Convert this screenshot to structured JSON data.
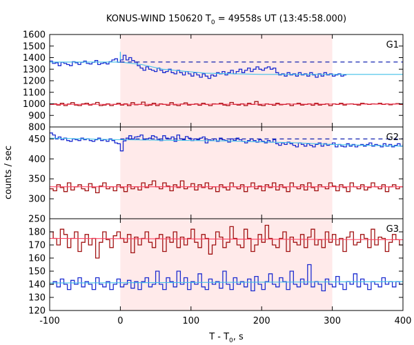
{
  "title": {
    "prefix": "KONUS-WIND 150620 T",
    "sub": "0",
    "suffix": " = 49558s UT (13:45:58.000)"
  },
  "xlabel": {
    "prefix": "T - T",
    "sub": "0",
    "suffix": ", s"
  },
  "ylabel": "counts / sec",
  "colors": {
    "shade": "#ffeaea",
    "blue": "#1a2bd0",
    "red": "#a01010",
    "cyan": "#40c0e8",
    "pink": "#ff4060",
    "blue_dash": "#1020b0"
  },
  "chart_data": {
    "type": "line",
    "x_range": [
      -100,
      400
    ],
    "x_ticks": [
      -100,
      0,
      100,
      200,
      300,
      400
    ],
    "highlight_interval": [
      0,
      300
    ],
    "panels": [
      {
        "label": "G1",
        "ylim": [
          800,
          1600
        ],
        "yticks": [
          800,
          900,
          1000,
          1100,
          1200,
          1300,
          1400,
          1500,
          1600
        ],
        "dashed_level": 1362,
        "series": [
          {
            "color": "blue",
            "step": 4,
            "x_start": -100,
            "values": [
              1370,
              1350,
              1355,
              1330,
              1360,
              1350,
              1340,
              1330,
              1365,
              1355,
              1340,
              1360,
              1370,
              1350,
              1345,
              1360,
              1375,
              1340,
              1350,
              1355,
              1345,
              1365,
              1380,
              1390,
              1360,
              1380,
              1420,
              1380,
              1400,
              1375,
              1360,
              1330,
              1310,
              1290,
              1320,
              1300,
              1290,
              1280,
              1310,
              1290,
              1270,
              1280,
              1300,
              1270,
              1260,
              1290,
              1270,
              1250,
              1280,
              1260,
              1240,
              1270,
              1250,
              1230,
              1260,
              1240,
              1220,
              1250,
              1240,
              1270,
              1260,
              1280,
              1250,
              1270,
              1290,
              1260,
              1280,
              1300,
              1270,
              1290,
              1310,
              1280,
              1300,
              1320,
              1300,
              1290,
              1310,
              1320,
              1300,
              1310,
              1270,
              1250,
              1260,
              1240,
              1270,
              1250,
              1260,
              1240,
              1270,
              1250,
              1260,
              1240,
              1270,
              1250,
              1230,
              1260,
              1240,
              1270,
              1250,
              1260,
              1240,
              1250,
              1260,
              1240,
              1250
            ],
            "spikes": [
              {
                "x": 0,
                "value": 1450
              }
            ]
          },
          {
            "color": "red",
            "step": 5,
            "x_start": -100,
            "values": [
              995,
              1000,
              990,
              1005,
              985,
              998,
              1010,
              990,
              985,
              1000,
              1005,
              990,
              998,
              1012,
              985,
              990,
              1000,
              985,
              995,
              1005,
              990,
              1000,
              985,
              1010,
              992,
              995,
              1015,
              985,
              990,
              1005,
              985,
              1000,
              995,
              988,
              1010,
              992,
              985,
              998,
              1008,
              990,
              995,
              1000,
              988,
              1005,
              995,
              985,
              1000,
              998,
              1005,
              990,
              985,
              1012,
              995,
              990,
              1000,
              985,
              1005,
              995,
              1020,
              990,
              985,
              1000,
              995,
              988,
              1005,
              992,
              995,
              1000,
              985,
              998,
              1005,
              990,
              995,
              1000,
              988,
              1005,
              990,
              995,
              1000,
              985,
              1000,
              995,
              1005,
              990,
              998,
              1000,
              995,
              990,
              1005,
              1000,
              995,
              1000,
              998,
              1005,
              995,
              1000,
              992,
              998,
              1002,
              995
            ]
          }
        ],
        "fits": [
          {
            "color": "cyan",
            "points": [
              [
                -100,
                1362
              ],
              [
                0,
                1362
              ],
              [
                30,
                1340
              ],
              [
                60,
                1300
              ],
              [
                120,
                1265
              ],
              [
                200,
                1255
              ],
              [
                260,
                1255
              ],
              [
                300,
                1255
              ],
              [
                400,
                1255
              ]
            ]
          },
          {
            "color": "pink",
            "points": [
              [
                -100,
                995
              ],
              [
                400,
                998
              ]
            ]
          }
        ]
      },
      {
        "label": "G2",
        "ylim": [
          250,
          480
        ],
        "yticks": [
          250,
          300,
          350,
          400,
          450
        ],
        "dashed_level": 450,
        "series": [
          {
            "color": "blue",
            "step": 4,
            "x_start": -100,
            "values": [
              465,
              460,
              450,
              455,
              448,
              452,
              446,
              444,
              450,
              448,
              446,
              452,
              448,
              450,
              446,
              444,
              448,
              452,
              446,
              448,
              444,
              450,
              446,
              440,
              438,
              420,
              445,
              452,
              458,
              450,
              455,
              456,
              460,
              448,
              450,
              452,
              458,
              455,
              448,
              446,
              458,
              452,
              450,
              455,
              444,
              460,
              450,
              448,
              456,
              452,
              446,
              450,
              448,
              452,
              455,
              440,
              448,
              446,
              450,
              444,
              452,
              448,
              446,
              442,
              450,
              446,
              452,
              448,
              444,
              440,
              446,
              450,
              446,
              442,
              448,
              444,
              440,
              446,
              442,
              448,
              438,
              434,
              440,
              436,
              442,
              438,
              434,
              430,
              440,
              436,
              432,
              438,
              434,
              430,
              436,
              440,
              432,
              438,
              434,
              436,
              440,
              430,
              436,
              432,
              430,
              438,
              432,
              436,
              430,
              434,
              436,
              432,
              436,
              440,
              432,
              436,
              434,
              430,
              438,
              432,
              436,
              430,
              434,
              438,
              432,
              436
            ]
          },
          {
            "color": "red",
            "step": 5,
            "x_start": -100,
            "values": [
              325,
              320,
              335,
              328,
              318,
              340,
              322,
              330,
              335,
              325,
              320,
              338,
              328,
              315,
              332,
              340,
              325,
              330,
              320,
              335,
              328,
              318,
              335,
              325,
              330,
              322,
              340,
              328,
              335,
              345,
              330,
              325,
              340,
              332,
              320,
              335,
              328,
              345,
              325,
              330,
              338,
              322,
              335,
              328,
              340,
              325,
              330,
              318,
              335,
              328,
              322,
              340,
              330,
              325,
              335,
              318,
              330,
              340,
              325,
              332,
              320,
              335,
              328,
              340,
              322,
              335,
              328,
              318,
              340,
              330,
              325,
              335,
              322,
              340,
              328,
              320,
              335,
              330,
              325,
              340,
              332,
              320,
              335,
              328,
              318,
              340,
              330,
              325,
              335,
              322,
              328,
              340,
              330,
              325,
              335,
              318,
              330,
              335,
              325,
              330
            ]
          }
        ],
        "fits": [
          {
            "color": "cyan",
            "points": [
              [
                -100,
                452
              ],
              [
                0,
                448
              ],
              [
                150,
                445
              ],
              [
                250,
                440
              ],
              [
                300,
                436
              ],
              [
                400,
                432
              ]
            ]
          },
          {
            "color": "pink",
            "points": [
              [
                -100,
                330
              ],
              [
                400,
                330
              ]
            ]
          }
        ]
      },
      {
        "label": "G3",
        "ylim": [
          120,
          190
        ],
        "yticks": [
          120,
          130,
          140,
          150,
          160,
          170,
          180
        ],
        "series": [
          {
            "color": "red",
            "step": 5,
            "x_start": -100,
            "values": [
              180,
              175,
              170,
              182,
              178,
              168,
              175,
              180,
              165,
              172,
              178,
              170,
              175,
              160,
              172,
              180,
              174,
              168,
              177,
              180,
              175,
              172,
              178,
              164,
              176,
              170,
              175,
              180,
              172,
              168,
              175,
              178,
              165,
              176,
              172,
              180,
              168,
              176,
              170,
              175,
              182,
              172,
              168,
              178,
              175,
              163,
              170,
              180,
              176,
              168,
              172,
              184,
              175,
              170,
              168,
              182,
              175,
              165,
              170,
              178,
              172,
              185,
              175,
              170,
              168,
              175,
              180,
              165,
              176,
              172,
              170,
              178,
              168,
              176,
              182,
              170,
              174,
              168,
              180,
              172,
              178,
              170,
              175,
              165,
              176,
              180,
              170,
              172,
              178,
              175,
              168,
              182,
              170,
              176,
              175,
              165,
              172,
              178,
              174,
              170
            ]
          },
          {
            "color": "blue",
            "step": 5,
            "x_start": -100,
            "values": [
              140,
              142,
              138,
              144,
              140,
              136,
              143,
              140,
              145,
              138,
              142,
              140,
              136,
              145,
              140,
              138,
              142,
              136,
              140,
              144,
              138,
              140,
              143,
              137,
              142,
              136,
              142,
              145,
              138,
              140,
              150,
              140,
              136,
              145,
              142,
              138,
              150,
              140,
              145,
              136,
              142,
              140,
              148,
              138,
              136,
              144,
              140,
              142,
              137,
              150,
              140,
              136,
              145,
              140,
              142,
              138,
              144,
              135,
              146,
              140,
              136,
              142,
              148,
              140,
              138,
              145,
              142,
              136,
              150,
              140,
              138,
              144,
              140,
              155,
              138,
              142,
              140,
              135,
              144,
              140,
              138,
              146,
              140,
              136,
              142,
              140,
              148,
              138,
              144,
              140,
              136,
              142,
              140,
              138,
              145,
              140,
              142,
              138,
              142,
              140
            ]
          }
        ],
        "fits": [
          {
            "color": "pink",
            "points": [
              [
                -100,
                175
              ],
              [
                400,
                174
              ]
            ]
          },
          {
            "color": "cyan",
            "points": [
              [
                -100,
                141
              ],
              [
                400,
                142
              ]
            ]
          }
        ]
      }
    ]
  }
}
